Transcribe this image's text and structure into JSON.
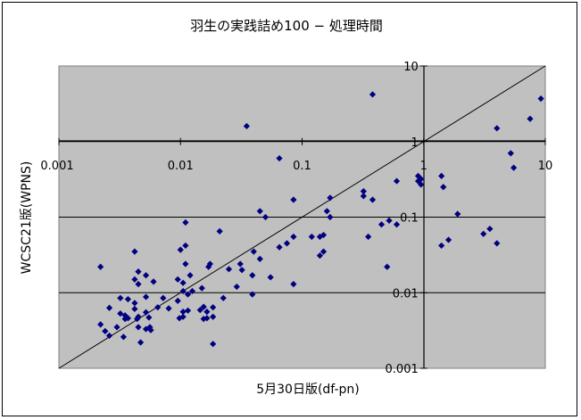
{
  "chart_data": {
    "type": "scatter",
    "title": "羽生の実践詰め100 − 処理時間",
    "xlabel": "5月30日版(df-pn)",
    "ylabel": "WCSC21版(WPNS)",
    "x_scale": "log",
    "y_scale": "log",
    "xlim": [
      0.001,
      10
    ],
    "ylim": [
      0.001,
      10
    ],
    "x_tick_labels": [
      "0.001",
      "0.01",
      "0.1",
      "1",
      "10"
    ],
    "y_tick_labels": [
      "0.001",
      "0.01",
      "0.1",
      "1",
      "10"
    ],
    "grid": "horizontal",
    "legend": "none",
    "plot_background": "#c0c0c0",
    "marker_color": "#000080",
    "reference_line": "y = x",
    "points": [
      [
        0.035,
        1.6
      ],
      [
        0.38,
        4.2
      ],
      [
        7.5,
        2.0
      ],
      [
        9.2,
        3.7
      ],
      [
        4.0,
        1.5
      ],
      [
        5.2,
        0.7
      ],
      [
        5.5,
        0.45
      ],
      [
        0.065,
        0.6
      ],
      [
        0.9,
        0.35
      ],
      [
        0.9,
        0.3
      ],
      [
        0.95,
        0.32
      ],
      [
        0.95,
        0.27
      ],
      [
        1.4,
        0.35
      ],
      [
        1.45,
        0.25
      ],
      [
        0.32,
        0.22
      ],
      [
        0.6,
        0.3
      ],
      [
        0.32,
        0.19
      ],
      [
        0.38,
        0.17
      ],
      [
        1.9,
        0.11
      ],
      [
        0.45,
        0.08
      ],
      [
        0.52,
        0.09
      ],
      [
        0.17,
        0.18
      ],
      [
        0.16,
        0.12
      ],
      [
        0.17,
        0.1
      ],
      [
        0.085,
        0.17
      ],
      [
        0.05,
        0.1
      ],
      [
        0.045,
        0.12
      ],
      [
        0.35,
        0.055
      ],
      [
        0.6,
        0.08
      ],
      [
        3.1,
        0.06
      ],
      [
        3.5,
        0.07
      ],
      [
        1.6,
        0.05
      ],
      [
        1.4,
        0.042
      ],
      [
        4.0,
        0.045
      ],
      [
        0.12,
        0.055
      ],
      [
        0.14,
        0.055
      ],
      [
        0.15,
        0.058
      ],
      [
        0.085,
        0.055
      ],
      [
        0.075,
        0.045
      ],
      [
        0.065,
        0.04
      ],
      [
        0.15,
        0.035
      ],
      [
        0.14,
        0.031
      ],
      [
        0.04,
        0.035
      ],
      [
        0.031,
        0.024
      ],
      [
        0.045,
        0.028
      ],
      [
        0.055,
        0.016
      ],
      [
        0.032,
        0.02
      ],
      [
        0.039,
        0.017
      ],
      [
        0.085,
        0.013
      ],
      [
        0.029,
        0.012
      ],
      [
        0.039,
        0.0095
      ],
      [
        0.5,
        0.022
      ],
      [
        0.011,
        0.085
      ],
      [
        0.021,
        0.065
      ],
      [
        0.011,
        0.042
      ],
      [
        0.01,
        0.037
      ],
      [
        0.0042,
        0.035
      ],
      [
        0.0045,
        0.019
      ],
      [
        0.0042,
        0.015
      ],
      [
        0.0045,
        0.013
      ],
      [
        0.0052,
        0.017
      ],
      [
        0.006,
        0.014
      ],
      [
        0.0022,
        0.022
      ],
      [
        0.0095,
        0.015
      ],
      [
        0.0105,
        0.0135
      ],
      [
        0.012,
        0.017
      ],
      [
        0.011,
        0.024
      ],
      [
        0.017,
        0.022
      ],
      [
        0.0175,
        0.024
      ],
      [
        0.025,
        0.0205
      ],
      [
        0.0105,
        0.0105
      ],
      [
        0.0115,
        0.0095
      ],
      [
        0.0125,
        0.0105
      ],
      [
        0.015,
        0.0115
      ],
      [
        0.0095,
        0.0078
      ],
      [
        0.008,
        0.0062
      ],
      [
        0.0072,
        0.0085
      ],
      [
        0.0065,
        0.0064
      ],
      [
        0.0105,
        0.0056
      ],
      [
        0.0115,
        0.0058
      ],
      [
        0.0145,
        0.0059
      ],
      [
        0.0165,
        0.0056
      ],
      [
        0.0185,
        0.0064
      ],
      [
        0.0155,
        0.0065
      ],
      [
        0.0105,
        0.0048
      ],
      [
        0.0098,
        0.0046
      ],
      [
        0.0155,
        0.0045
      ],
      [
        0.0185,
        0.0048
      ],
      [
        0.0165,
        0.0046
      ],
      [
        0.0225,
        0.0085
      ],
      [
        0.0032,
        0.0085
      ],
      [
        0.0037,
        0.0082
      ],
      [
        0.0042,
        0.0073
      ],
      [
        0.0052,
        0.0088
      ],
      [
        0.0042,
        0.0061
      ],
      [
        0.0052,
        0.0055
      ],
      [
        0.0055,
        0.0047
      ],
      [
        0.0045,
        0.0048
      ],
      [
        0.0035,
        0.0045
      ],
      [
        0.0037,
        0.0046
      ],
      [
        0.0044,
        0.0045
      ],
      [
        0.0026,
        0.0063
      ],
      [
        0.0032,
        0.0053
      ],
      [
        0.0035,
        0.005
      ],
      [
        0.0022,
        0.0038
      ],
      [
        0.0024,
        0.0031
      ],
      [
        0.0026,
        0.0027
      ],
      [
        0.003,
        0.0035
      ],
      [
        0.0034,
        0.0026
      ],
      [
        0.0045,
        0.0035
      ],
      [
        0.0052,
        0.0033
      ],
      [
        0.0056,
        0.0035
      ],
      [
        0.0057,
        0.0032
      ],
      [
        0.0047,
        0.0022
      ],
      [
        0.0185,
        0.0021
      ]
    ]
  }
}
